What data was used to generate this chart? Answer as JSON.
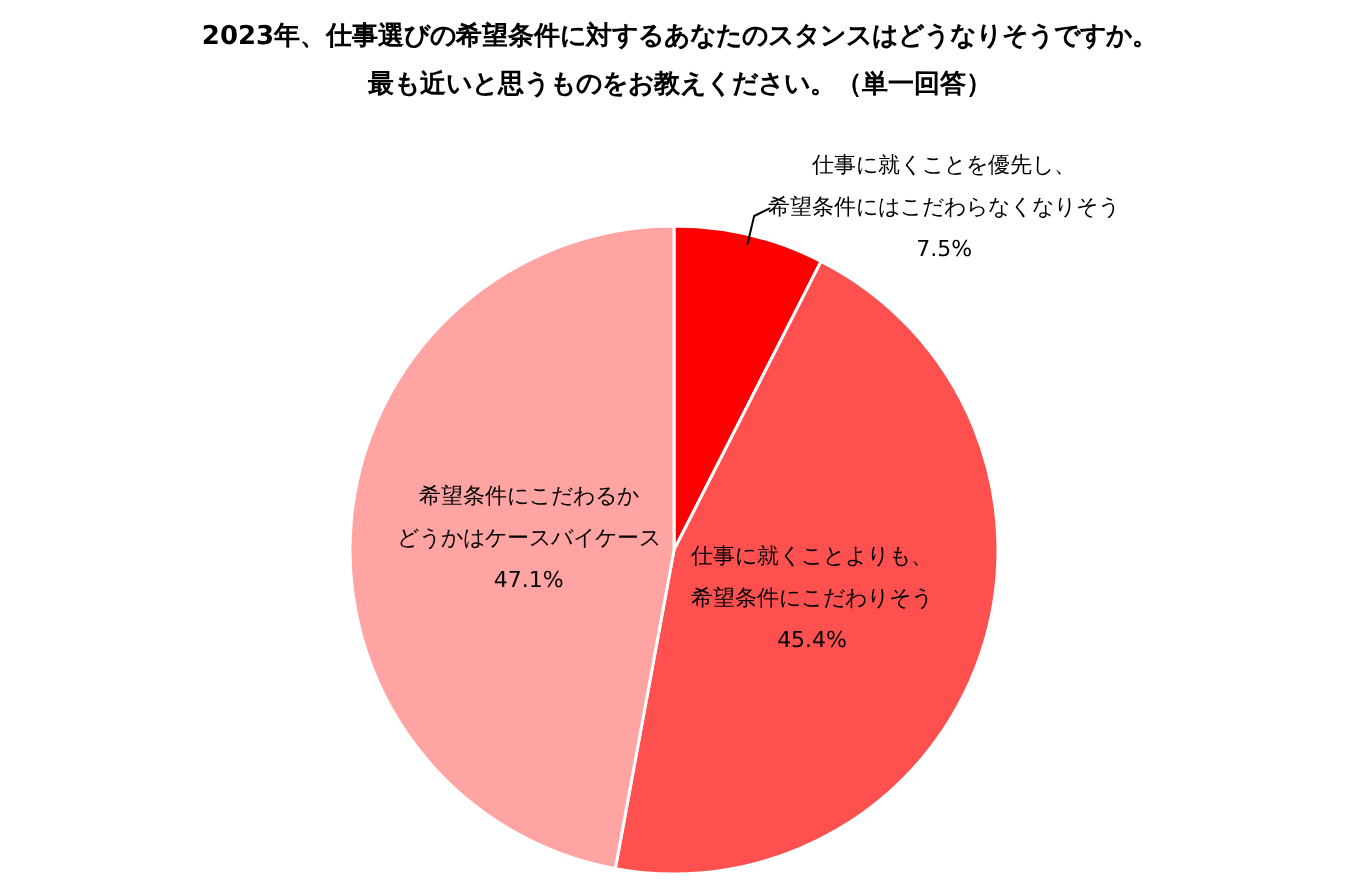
{
  "chart_data": {
    "type": "pie",
    "title": "2023年、仕事選びの希望条件に対するあなたのスタンスはどうなりそうですか。最も近いと思うものをお教えください。（単一回答）",
    "categories": [
      "仕事に就くことを優先し、希望条件にはこだわらなくなりそう",
      "仕事に就くことよりも、希望条件にこだわりそう",
      "希望条件にこだわるかどうかはケースバイケース"
    ],
    "values": [
      7.5,
      45.4,
      47.1
    ],
    "colors": [
      "#ff0000",
      "#ff5050",
      "#ffa3a3"
    ],
    "value_labels": [
      "7.5%",
      "45.4%",
      "47.1%"
    ]
  }
}
